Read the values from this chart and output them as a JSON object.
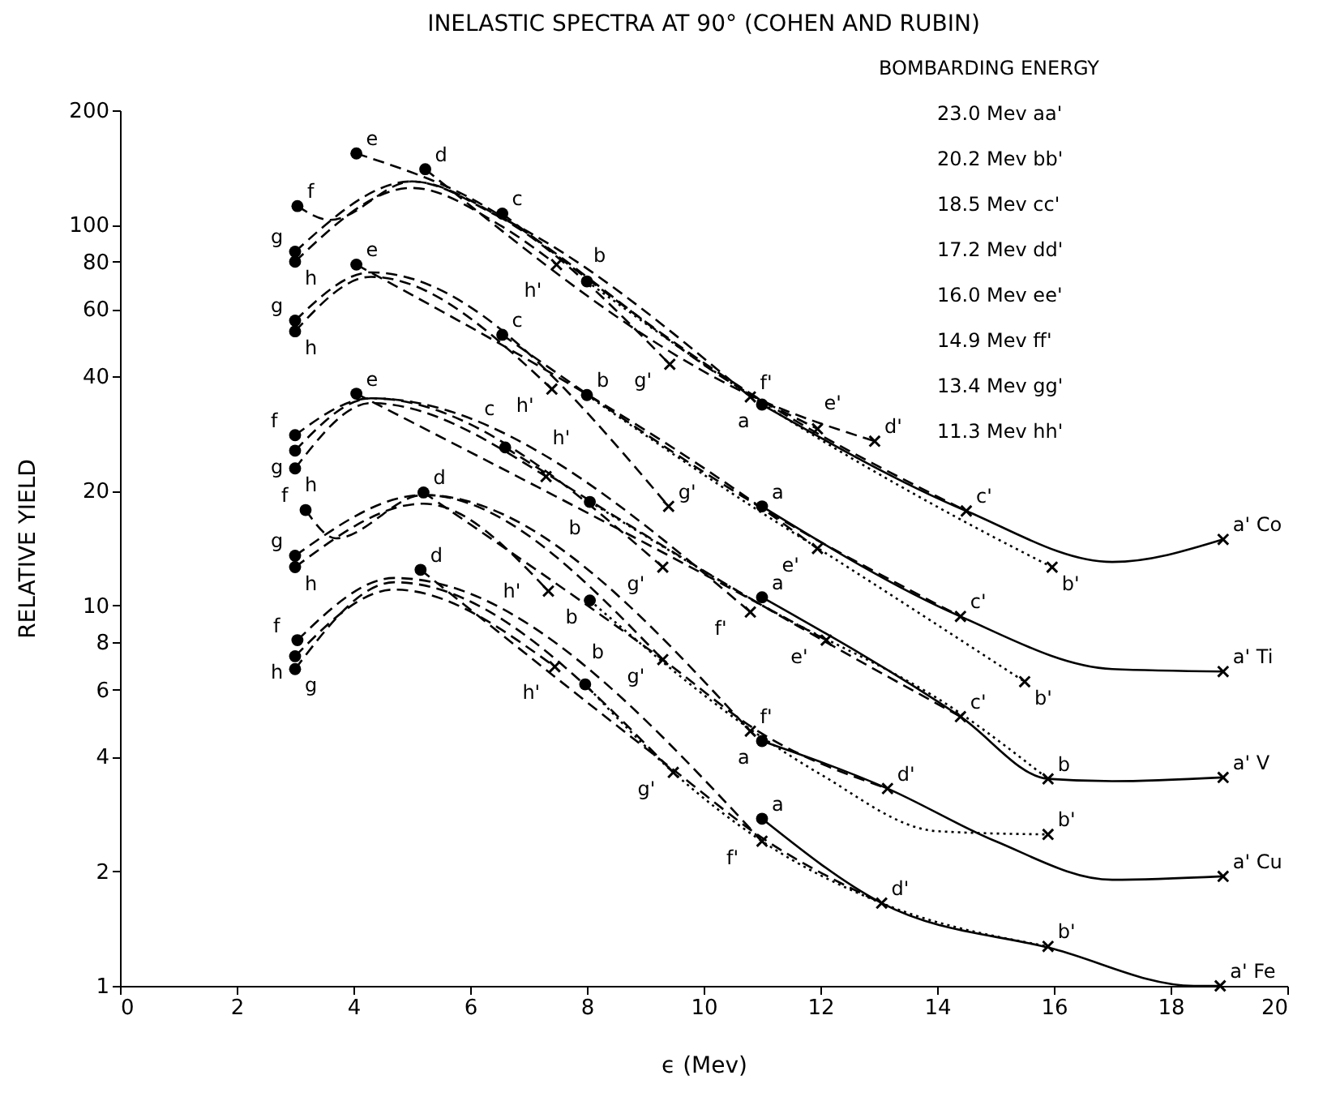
{
  "chart_data": {
    "type": "line",
    "title": "INELASTIC SPECTRA AT 90° (COHEN AND RUBIN)",
    "xlabel": "ϵ (Mev)",
    "ylabel": "RELATIVE YIELD",
    "log": true,
    "xlim": [
      0,
      20
    ],
    "xticks": [
      0,
      2,
      4,
      6,
      8,
      10,
      12,
      14,
      16,
      18,
      20
    ],
    "ylim": [
      1,
      200
    ],
    "yticks": [
      1,
      2,
      4,
      6,
      8,
      10,
      20,
      40,
      60,
      80,
      100,
      200
    ],
    "series": [
      {
        "x": [
          11,
          14.5,
          17,
          18.9
        ],
        "values": [
          33.7,
          17.7,
          13,
          14.9
        ],
        "color": "#000000",
        "line_style": "solid"
      },
      {
        "x": [
          8,
          11,
          14.5,
          15.97
        ],
        "values": [
          71,
          34,
          16.5,
          12.6
        ],
        "color": "#000000",
        "line_style": "dotted"
      },
      {
        "x": [
          6.55,
          11,
          14.5
        ],
        "values": [
          107,
          34.5,
          17.7
        ],
        "color": "#000000",
        "line_style": "dashed"
      },
      {
        "x": [
          5.23,
          11,
          12.93
        ],
        "values": [
          140,
          34.5,
          27
        ],
        "color": "#000000",
        "line_style": "dashed"
      },
      {
        "x": [
          4.05,
          5.5,
          11,
          11.95
        ],
        "values": [
          154,
          128,
          34.5,
          29.1
        ],
        "color": "#000000",
        "line_style": "dashed"
      },
      {
        "x": [
          3.04,
          3.6,
          5,
          6.5,
          10.8
        ],
        "values": [
          112,
          103,
          130,
          105,
          35.3
        ],
        "color": "#000000",
        "line_style": "dashed"
      },
      {
        "x": [
          3,
          5,
          6.5,
          9.42
        ],
        "values": [
          85,
          130,
          105,
          43
        ],
        "color": "#000000",
        "line_style": "dashed"
      },
      {
        "x": [
          3,
          5,
          6.5,
          7.48
        ],
        "values": [
          80,
          125,
          100,
          78.6
        ],
        "color": "#000000",
        "line_style": "dashed"
      },
      {
        "type": "scatter",
        "marker": "circle",
        "x": [
          11,
          8,
          6.55,
          5.23,
          4.05,
          3.04,
          3,
          3
        ],
        "values": [
          33.7,
          71,
          107,
          140,
          154,
          112,
          85,
          80
        ],
        "color": "#000000"
      },
      {
        "type": "scatter",
        "marker": "cross",
        "x": [
          18.9,
          15.97,
          14.5,
          12.93,
          11.95,
          10.8,
          9.42,
          7.48
        ],
        "values": [
          14.9,
          12.6,
          17.7,
          27,
          29.1,
          35.3,
          43,
          78.6
        ],
        "color": "#000000"
      },
      {
        "x": [
          11,
          14.4,
          17,
          18.9
        ],
        "values": [
          18.2,
          9.35,
          6.8,
          6.7
        ],
        "color": "#000000",
        "line_style": "solid"
      },
      {
        "x": [
          8,
          11,
          12,
          15.5
        ],
        "values": [
          35.7,
          17.5,
          14,
          6.3
        ],
        "color": "#000000",
        "line_style": "dotted"
      },
      {
        "x": [
          6.55,
          11,
          14.4
        ],
        "values": [
          51.4,
          18,
          9.35
        ],
        "color": "#000000",
        "line_style": "dashed"
      },
      {
        "x": [
          4.05,
          11,
          11.95
        ],
        "values": [
          78.6,
          18,
          14.1
        ],
        "color": "#000000",
        "line_style": "dashed"
      },
      {
        "x": [
          3,
          4.3,
          9.4
        ],
        "values": [
          56,
          75,
          18.2
        ],
        "color": "#000000",
        "line_style": "dashed"
      },
      {
        "x": [
          3,
          4.3,
          7.4
        ],
        "values": [
          52.5,
          73,
          37
        ],
        "color": "#000000",
        "line_style": "dashed"
      },
      {
        "type": "scatter",
        "marker": "circle",
        "x": [
          11,
          8,
          6.55,
          4.05,
          3,
          3
        ],
        "values": [
          18.2,
          35.7,
          51.4,
          78.6,
          56,
          52.5
        ],
        "color": "#000000"
      },
      {
        "type": "scatter",
        "marker": "cross",
        "x": [
          18.9,
          15.5,
          14.4,
          11.95,
          9.4,
          7.4
        ],
        "values": [
          6.7,
          6.3,
          9.35,
          14.1,
          18.2,
          37
        ],
        "color": "#000000"
      },
      {
        "x": [
          11,
          14.4,
          15.9,
          17,
          18.9
        ],
        "values": [
          10.5,
          5.1,
          3.5,
          3.45,
          3.53
        ],
        "color": "#000000",
        "line_style": "solid"
      },
      {
        "x": [
          8.05,
          11,
          14.4,
          15.9
        ],
        "values": [
          18.7,
          10,
          5.2,
          3.5
        ],
        "color": "#000000",
        "line_style": "dotted"
      },
      {
        "x": [
          6.6,
          11,
          14.4
        ],
        "values": [
          26,
          10,
          5.1
        ],
        "color": "#000000",
        "line_style": "dashed"
      },
      {
        "x": [
          4.05,
          11,
          12.1
        ],
        "values": [
          36,
          10,
          8.1
        ],
        "color": "#000000",
        "line_style": "dashed"
      },
      {
        "x": [
          3,
          4.3,
          10.8
        ],
        "values": [
          28,
          35,
          9.6
        ],
        "color": "#000000",
        "line_style": "dashed"
      },
      {
        "x": [
          3,
          4.3,
          9.3
        ],
        "values": [
          25.5,
          35,
          12.6
        ],
        "color": "#000000",
        "line_style": "dashed"
      },
      {
        "x": [
          3,
          4.3,
          7.3
        ],
        "values": [
          22.9,
          34,
          21.8
        ],
        "color": "#000000",
        "line_style": "dashed"
      },
      {
        "type": "scatter",
        "marker": "circle",
        "x": [
          11,
          8.05,
          6.6,
          4.05,
          3,
          3,
          3
        ],
        "values": [
          10.5,
          18.7,
          26,
          36,
          28,
          25.5,
          22.9
        ],
        "color": "#000000"
      },
      {
        "type": "scatter",
        "marker": "cross",
        "x": [
          18.9,
          15.9,
          14.4,
          12.1,
          10.8,
          9.3,
          7.3
        ],
        "values": [
          3.53,
          3.5,
          5.1,
          8.1,
          9.6,
          12.6,
          21.8
        ],
        "color": "#000000"
      },
      {
        "x": [
          11,
          13.15,
          15,
          17,
          18.9
        ],
        "values": [
          4.4,
          3.3,
          2.4,
          1.9,
          1.94
        ],
        "color": "#000000",
        "line_style": "solid"
      },
      {
        "x": [
          8.05,
          11,
          12,
          14,
          15.9
        ],
        "values": [
          10.3,
          4.5,
          3.6,
          2.55,
          2.5
        ],
        "color": "#000000",
        "line_style": "dotted"
      },
      {
        "x": [
          5.2,
          9.3,
          11,
          13.15
        ],
        "values": [
          19.8,
          7.2,
          4.6,
          3.3
        ],
        "color": "#000000",
        "line_style": "dashed"
      },
      {
        "x": [
          3.18,
          3.7,
          5.2,
          10.8
        ],
        "values": [
          17.8,
          15,
          19.5,
          4.67
        ],
        "color": "#000000",
        "line_style": "dashed"
      },
      {
        "x": [
          3,
          5.2,
          9.3
        ],
        "values": [
          13.5,
          19.5,
          7.2
        ],
        "color": "#000000",
        "line_style": "dashed"
      },
      {
        "x": [
          3,
          5.2,
          7.34
        ],
        "values": [
          12.6,
          18.5,
          10.9
        ],
        "color": "#000000",
        "line_style": "dashed"
      },
      {
        "type": "scatter",
        "marker": "circle",
        "x": [
          11,
          8.05,
          5.2,
          3.18,
          3,
          3
        ],
        "values": [
          4.4,
          10.3,
          19.8,
          17.8,
          13.5,
          12.6
        ],
        "color": "#000000"
      },
      {
        "type": "scatter",
        "marker": "cross",
        "x": [
          18.9,
          15.9,
          13.15,
          10.8,
          9.3,
          7.34
        ],
        "values": [
          1.94,
          2.5,
          3.3,
          4.67,
          7.2,
          10.9
        ],
        "color": "#000000"
      },
      {
        "x": [
          11,
          13.05,
          16,
          18.4,
          18.85
        ],
        "values": [
          2.75,
          1.65,
          1.25,
          1,
          1
        ],
        "color": "#000000",
        "line_style": "solid"
      },
      {
        "x": [
          7.97,
          9.48,
          11,
          13.05,
          15.9
        ],
        "values": [
          6.2,
          3.64,
          2.4,
          1.65,
          1.27
        ],
        "color": "#000000",
        "line_style": "dotted"
      },
      {
        "x": [
          5.15,
          9.48,
          11,
          13.05
        ],
        "values": [
          12.4,
          3.7,
          2.45,
          1.65
        ],
        "color": "#000000",
        "line_style": "dashed"
      },
      {
        "x": [
          3.04,
          4.7,
          11
        ],
        "values": [
          8.1,
          11.8,
          2.4
        ],
        "color": "#000000",
        "line_style": "dashed"
      },
      {
        "x": [
          3,
          4.7,
          9.48
        ],
        "values": [
          6.8,
          11.5,
          3.64
        ],
        "color": "#000000",
        "line_style": "dashed"
      },
      {
        "x": [
          3,
          4.7,
          7.45
        ],
        "values": [
          7.35,
          11,
          6.9
        ],
        "color": "#000000",
        "line_style": "dashed"
      },
      {
        "type": "scatter",
        "marker": "circle",
        "x": [
          11,
          7.97,
          5.15,
          3.04,
          3,
          3
        ],
        "values": [
          2.75,
          6.2,
          12.4,
          8.1,
          6.8,
          7.35
        ],
        "color": "#000000"
      },
      {
        "type": "scatter",
        "marker": "cross",
        "x": [
          18.85,
          15.9,
          13.05,
          11,
          9.48,
          7.45
        ],
        "values": [
          1,
          1.27,
          1.65,
          2.4,
          3.64,
          6.9
        ],
        "color": "#000000"
      }
    ],
    "annotations": [
      "BOMBARDING ENERGY",
      "23.0 Mev  aa'",
      "20.2 Mev  bb'",
      "18.5 Mev  cc'",
      "17.2 Mev  dd'",
      "16.0 Mev  ee'",
      "14.9 Mev  ff'",
      "13.4 Mev  gg'",
      "11.3 Mev  hh'",
      {
        "text": "a",
        "x": 11,
        "y": 33.7
      },
      {
        "text": "b",
        "x": 8,
        "y": 71
      },
      {
        "text": "c",
        "x": 6.55,
        "y": 107
      },
      {
        "text": "d",
        "x": 5.23,
        "y": 140
      },
      {
        "text": "e",
        "x": 4.05,
        "y": 154
      },
      {
        "text": "f",
        "x": 3.04,
        "y": 112
      },
      {
        "text": "g",
        "x": 3,
        "y": 85
      },
      {
        "text": "h",
        "x": 3,
        "y": 80
      },
      {
        "text": "a' Co",
        "x": 18.9,
        "y": 14.9
      },
      {
        "text": "b'",
        "x": 15.97,
        "y": 12.6
      },
      {
        "text": "c'",
        "x": 14.5,
        "y": 17.7
      },
      {
        "text": "d'",
        "x": 12.93,
        "y": 27
      },
      {
        "text": "e'",
        "x": 11.95,
        "y": 29.1
      },
      {
        "text": "f'",
        "x": 10.8,
        "y": 35.3
      },
      {
        "text": "g'",
        "x": 9.42,
        "y": 43
      },
      {
        "text": "h'",
        "x": 7.48,
        "y": 78.6
      },
      {
        "text": "a",
        "x": 11,
        "y": 18.2
      },
      {
        "text": "b",
        "x": 8,
        "y": 35.7
      },
      {
        "text": "c",
        "x": 6.55,
        "y": 51.4
      },
      {
        "text": "e",
        "x": 4.05,
        "y": 78.6
      },
      {
        "text": "g",
        "x": 3,
        "y": 56
      },
      {
        "text": "h",
        "x": 3,
        "y": 52.5
      },
      {
        "text": "a' Ti",
        "x": 18.9,
        "y": 6.7
      },
      {
        "text": "b'",
        "x": 15.5,
        "y": 6.3
      },
      {
        "text": "c'",
        "x": 14.4,
        "y": 9.35
      },
      {
        "text": "e'",
        "x": 11.95,
        "y": 14.1
      },
      {
        "text": "g'",
        "x": 9.4,
        "y": 18.2
      },
      {
        "text": "h'",
        "x": 7.4,
        "y": 37
      },
      {
        "text": "a",
        "x": 11,
        "y": 10.5
      },
      {
        "text": "b",
        "x": 8.05,
        "y": 18.7
      },
      {
        "text": "c",
        "x": 6.6,
        "y": 26
      },
      {
        "text": "e",
        "x": 4.05,
        "y": 36
      },
      {
        "text": "f",
        "x": 3,
        "y": 28
      },
      {
        "text": "g",
        "x": 3,
        "y": 25.5
      },
      {
        "text": "h",
        "x": 3,
        "y": 22.9
      },
      {
        "text": "a' V",
        "x": 18.9,
        "y": 3.53
      },
      {
        "text": "b",
        "x": 15.9,
        "y": 3.5
      },
      {
        "text": "c'",
        "x": 14.4,
        "y": 5.1
      },
      {
        "text": "e'",
        "x": 12.1,
        "y": 8.1
      },
      {
        "text": "f'",
        "x": 10.8,
        "y": 9.6
      },
      {
        "text": "g'",
        "x": 9.3,
        "y": 12.6
      },
      {
        "text": "h'",
        "x": 7.3,
        "y": 21.8
      },
      {
        "text": "a",
        "x": 11,
        "y": 4.4
      },
      {
        "text": "b",
        "x": 8.05,
        "y": 10.3
      },
      {
        "text": "d",
        "x": 5.2,
        "y": 19.8
      },
      {
        "text": "f",
        "x": 3.18,
        "y": 17.8
      },
      {
        "text": "g",
        "x": 3,
        "y": 13.5
      },
      {
        "text": "h",
        "x": 3,
        "y": 12.6
      },
      {
        "text": "a' Cu",
        "x": 18.9,
        "y": 1.94
      },
      {
        "text": "b'",
        "x": 15.9,
        "y": 2.5
      },
      {
        "text": "d'",
        "x": 13.15,
        "y": 3.3
      },
      {
        "text": "f'",
        "x": 10.8,
        "y": 4.67
      },
      {
        "text": "g'",
        "x": 9.3,
        "y": 7.2
      },
      {
        "text": "h'",
        "x": 7.34,
        "y": 10.9
      },
      {
        "text": "a",
        "x": 11,
        "y": 2.75
      },
      {
        "text": "b",
        "x": 7.97,
        "y": 6.2
      },
      {
        "text": "d",
        "x": 5.15,
        "y": 12.4
      },
      {
        "text": "f",
        "x": 3.04,
        "y": 8.1
      },
      {
        "text": "g",
        "x": 3,
        "y": 6.8
      },
      {
        "text": "h",
        "x": 3,
        "y": 7.35
      },
      {
        "text": "a' Fe",
        "x": 18.85,
        "y": 1
      },
      {
        "text": "b'",
        "x": 15.9,
        "y": 1.27
      },
      {
        "text": "d'",
        "x": 13.05,
        "y": 1.65
      },
      {
        "text": "f'",
        "x": 11,
        "y": 2.4
      },
      {
        "text": "g'",
        "x": 9.48,
        "y": 3.64
      },
      {
        "text": "h'",
        "x": 7.45,
        "y": 6.9
      }
    ]
  }
}
